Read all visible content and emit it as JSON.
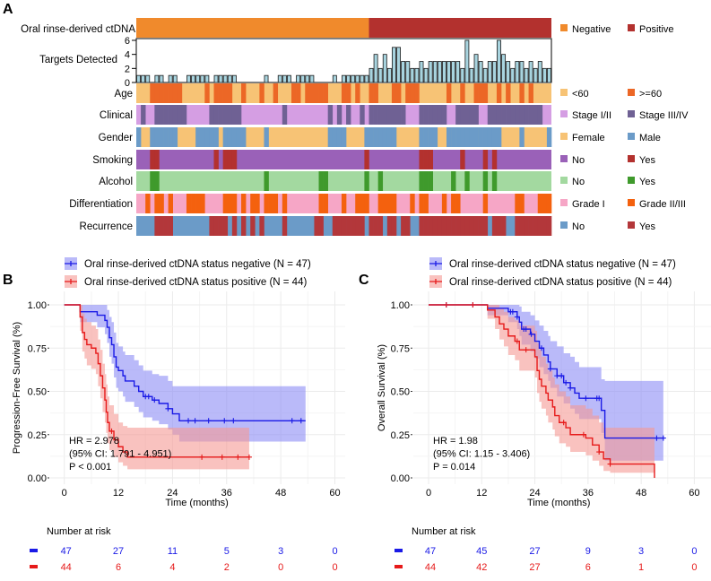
{
  "panels": {
    "a": "A",
    "b": "B",
    "c": "C"
  },
  "heatmap": {
    "n_columns": 91,
    "ctdna": {
      "label": "Oral rinse-derived ctDNA",
      "negative_count": 51,
      "legend": [
        {
          "label": "Negative",
          "color": "#f08a2c"
        },
        {
          "label": "Positive",
          "color": "#b3312e"
        }
      ]
    },
    "targets": {
      "label": "Targets Detected",
      "yticks": [
        "0",
        "2",
        "4",
        "6"
      ],
      "ymax": 6,
      "bar_color": "#a8d4df",
      "values": [
        1,
        1,
        1,
        0,
        1,
        1,
        0,
        1,
        1,
        0,
        0,
        1,
        1,
        1,
        1,
        1,
        0,
        1,
        1,
        1,
        1,
        1,
        0,
        0,
        0,
        0,
        0,
        0,
        1,
        0,
        0,
        1,
        1,
        1,
        0,
        1,
        1,
        1,
        1,
        0,
        0,
        0,
        0,
        1,
        0,
        1,
        1,
        1,
        1,
        1,
        1,
        2,
        4,
        2,
        4,
        2,
        5,
        5,
        3,
        3,
        2,
        2,
        3,
        2,
        3,
        3,
        3,
        3,
        3,
        3,
        3,
        2,
        6,
        2,
        4,
        3,
        2,
        3,
        3,
        6,
        4,
        3,
        2,
        3,
        3,
        2,
        3,
        2,
        3,
        2,
        2
      ]
    },
    "tracks": [
      {
        "label": "Age",
        "legend": [
          {
            "label": "<60",
            "color": "#f7c375"
          },
          {
            "label": ">=60",
            "color": "#ec6726"
          }
        ],
        "positive": [
          3,
          4,
          5,
          6,
          7,
          8,
          9,
          15,
          17,
          18,
          19,
          20,
          23,
          27,
          30,
          34,
          35,
          37,
          38,
          39,
          40,
          41,
          45,
          46,
          48,
          51,
          52,
          56,
          57,
          59,
          60,
          61,
          68,
          71,
          74,
          75,
          76,
          79,
          81,
          84,
          86
        ]
      },
      {
        "label": "Clinical",
        "legend": [
          {
            "label": "Stage I/II",
            "color": "#d59ee3"
          },
          {
            "label": "Stage III/IV",
            "color": "#6f6194"
          }
        ],
        "positive": [
          1,
          4,
          5,
          6,
          7,
          8,
          9,
          10,
          16,
          17,
          18,
          19,
          20,
          21,
          22,
          32,
          42,
          44,
          46,
          49,
          51,
          52,
          53,
          54,
          55,
          56,
          57,
          58,
          62,
          63,
          64,
          65,
          66,
          67,
          70,
          71,
          72,
          73,
          74,
          77,
          78,
          79,
          80,
          81,
          82,
          83,
          84,
          85,
          86,
          87,
          88
        ]
      },
      {
        "label": "Gender",
        "legend": [
          {
            "label": "Female",
            "color": "#f7c375"
          },
          {
            "label": "Male",
            "color": "#6b9bc8"
          }
        ],
        "positive": [
          0,
          3,
          4,
          5,
          6,
          7,
          8,
          13,
          14,
          15,
          16,
          17,
          19,
          20,
          21,
          22,
          23,
          28,
          42,
          43,
          44,
          45,
          50,
          51,
          52,
          53,
          54,
          55,
          56,
          62,
          63,
          64,
          65,
          68,
          69,
          70,
          71,
          72,
          73,
          74,
          75,
          76,
          77,
          78,
          79,
          84,
          90
        ]
      },
      {
        "label": "Smoking",
        "legend": [
          {
            "label": "No",
            "color": "#9a61b8"
          },
          {
            "label": "Yes",
            "color": "#b3312e"
          }
        ],
        "positive": [
          3,
          4,
          17,
          19,
          20,
          21,
          50,
          62,
          63,
          64,
          71,
          76,
          78
        ]
      },
      {
        "label": "Alcohol",
        "legend": [
          {
            "label": "No",
            "color": "#a3d9a0"
          },
          {
            "label": "Yes",
            "color": "#3f9a2c"
          }
        ],
        "positive": [
          3,
          4,
          28,
          40,
          41,
          50,
          53,
          62,
          63,
          64,
          69,
          72,
          76,
          78
        ]
      },
      {
        "label": "Differentiation",
        "legend": [
          {
            "label": "Grade I",
            "color": "#f6a6c6"
          },
          {
            "label": "Grade II/III",
            "color": "#f4610e"
          }
        ],
        "positive": [
          2,
          4,
          5,
          7,
          11,
          12,
          13,
          14,
          19,
          20,
          21,
          23,
          25,
          26,
          28,
          29,
          30,
          32,
          40,
          41,
          45,
          48,
          49,
          50,
          53,
          54,
          55,
          56,
          60,
          62,
          63,
          67,
          69,
          70,
          76,
          83,
          84,
          88,
          89,
          90
        ]
      },
      {
        "label": "Recurrence",
        "legend": [
          {
            "label": "No",
            "color": "#6b9bc8"
          },
          {
            "label": "Yes",
            "color": "#b3373a"
          }
        ],
        "positive": [
          4,
          5,
          6,
          7,
          16,
          17,
          18,
          19,
          21,
          23,
          25,
          27,
          32,
          39,
          40,
          43,
          44,
          45,
          46,
          47,
          48,
          49,
          51,
          52,
          53,
          55,
          56,
          58,
          59,
          62,
          63,
          64,
          65,
          66,
          67,
          68,
          69,
          70,
          71,
          72,
          73,
          74,
          75,
          76,
          78,
          79,
          80,
          83,
          84,
          85,
          86,
          87,
          88,
          89,
          90
        ]
      }
    ]
  },
  "chart_data": [
    {
      "type": "line",
      "subtype": "kaplan-meier",
      "ylabel": "Progression-Free Survival (%)",
      "xlabel": "Time (months)",
      "xlim": [
        0,
        60
      ],
      "ylim": [
        0,
        1
      ],
      "xticks": [
        "0",
        "12",
        "24",
        "36",
        "48",
        "60"
      ],
      "yticks": [
        "0.00",
        "0.25",
        "0.50",
        "0.75",
        "1.00"
      ],
      "grid": true,
      "legend_position": "top",
      "annotation": [
        "HR = 2.978",
        "(95% CI: 1.791 - 4.951)",
        "P < 0.001"
      ],
      "series": [
        {
          "name": "Oral rinse-derived ctDNA status negative (N = 47)",
          "color": "#1a1ae6",
          "ci_color": "#8c8cf5",
          "end": 53.5,
          "steps": [
            [
              0,
              1,
              1,
              1
            ],
            [
              3.5,
              0.96,
              0.9,
              1
            ],
            [
              7.3,
              0.94,
              0.87,
              1
            ],
            [
              9,
              0.91,
              0.83,
              1
            ],
            [
              9.5,
              0.87,
              0.78,
              0.97
            ],
            [
              10,
              0.81,
              0.7,
              0.93
            ],
            [
              10.5,
              0.77,
              0.66,
              0.9
            ],
            [
              11,
              0.7,
              0.58,
              0.84
            ],
            [
              11.5,
              0.64,
              0.52,
              0.78
            ],
            [
              12,
              0.62,
              0.5,
              0.76
            ],
            [
              13,
              0.59,
              0.47,
              0.73
            ],
            [
              13.5,
              0.56,
              0.44,
              0.71
            ],
            [
              15.5,
              0.53,
              0.41,
              0.68
            ],
            [
              16.5,
              0.5,
              0.38,
              0.65
            ],
            [
              17.5,
              0.47,
              0.35,
              0.62
            ],
            [
              19.5,
              0.45,
              0.33,
              0.6
            ],
            [
              21,
              0.43,
              0.31,
              0.59
            ],
            [
              23,
              0.4,
              0.28,
              0.56
            ],
            [
              24,
              0.37,
              0.25,
              0.53
            ],
            [
              25.5,
              0.33,
              0.21,
              0.53
            ]
          ],
          "censored": [
            18,
            18.7,
            20,
            23,
            27.5,
            29,
            32,
            35.5,
            37.5,
            50.5,
            52.5
          ],
          "at_risk": [
            "47",
            "27",
            "11",
            "5",
            "3",
            "0"
          ]
        },
        {
          "name": "Oral rinse-derived ctDNA status positive (N = 44)",
          "color": "#e61a1a",
          "ci_color": "#f59a94",
          "end": 41,
          "steps": [
            [
              0,
              1,
              1,
              1
            ],
            [
              3.5,
              0.93,
              0.85,
              1
            ],
            [
              4,
              0.84,
              0.73,
              0.95
            ],
            [
              4.5,
              0.8,
              0.69,
              0.92
            ],
            [
              5,
              0.77,
              0.65,
              0.9
            ],
            [
              6,
              0.75,
              0.63,
              0.88
            ],
            [
              7,
              0.72,
              0.6,
              0.86
            ],
            [
              7.5,
              0.66,
              0.53,
              0.8
            ],
            [
              8,
              0.59,
              0.46,
              0.74
            ],
            [
              8.5,
              0.52,
              0.38,
              0.66
            ],
            [
              9,
              0.45,
              0.32,
              0.6
            ],
            [
              9.3,
              0.38,
              0.26,
              0.54
            ],
            [
              9.6,
              0.32,
              0.2,
              0.47
            ],
            [
              10,
              0.27,
              0.16,
              0.42
            ],
            [
              11,
              0.22,
              0.12,
              0.37
            ],
            [
              12,
              0.18,
              0.09,
              0.32
            ],
            [
              13,
              0.15,
              0.07,
              0.3
            ],
            [
              14,
              0.12,
              0.05,
              0.29
            ]
          ],
          "censored": [
            10.5,
            30.5,
            35,
            38.5,
            41
          ],
          "at_risk": [
            "44",
            "6",
            "4",
            "2",
            "0",
            "0"
          ]
        }
      ],
      "risk_table_title": "Number at risk"
    },
    {
      "type": "line",
      "subtype": "kaplan-meier",
      "ylabel": "Overall Survival (%)",
      "xlabel": "Time (months)",
      "xlim": [
        0,
        60
      ],
      "ylim": [
        0,
        1
      ],
      "xticks": [
        "0",
        "12",
        "24",
        "36",
        "48",
        "60"
      ],
      "yticks": [
        "0.00",
        "0.25",
        "0.50",
        "0.75",
        "1.00"
      ],
      "grid": true,
      "legend_position": "top",
      "annotation": [
        "HR = 1.98",
        "(95% CI: 1.15 - 3.406)",
        "P = 0.014"
      ],
      "series": [
        {
          "name": "Oral rinse-derived ctDNA status negative (N = 47)",
          "color": "#1a1ae6",
          "ci_color": "#8c8cf5",
          "end": 53,
          "steps": [
            [
              0,
              1,
              1,
              1
            ],
            [
              13.3,
              0.98,
              0.94,
              1
            ],
            [
              18,
              0.96,
              0.9,
              1
            ],
            [
              20,
              0.93,
              0.86,
              1
            ],
            [
              20.5,
              0.9,
              0.82,
              0.99
            ],
            [
              21,
              0.86,
              0.77,
              0.96
            ],
            [
              23,
              0.83,
              0.73,
              0.94
            ],
            [
              24,
              0.79,
              0.69,
              0.91
            ],
            [
              25,
              0.75,
              0.64,
              0.88
            ],
            [
              26,
              0.71,
              0.6,
              0.85
            ],
            [
              27,
              0.67,
              0.56,
              0.82
            ],
            [
              27.5,
              0.63,
              0.52,
              0.79
            ],
            [
              29,
              0.59,
              0.47,
              0.76
            ],
            [
              30.5,
              0.55,
              0.43,
              0.72
            ],
            [
              32,
              0.52,
              0.4,
              0.7
            ],
            [
              33,
              0.49,
              0.37,
              0.67
            ],
            [
              34,
              0.46,
              0.34,
              0.64
            ],
            [
              39,
              0.39,
              0.26,
              0.57
            ],
            [
              39.8,
              0.23,
              0.1,
              0.56
            ]
          ],
          "censored": [
            4,
            10,
            18.5,
            19,
            20,
            21.5,
            22,
            23.2,
            25.5,
            27.5,
            29,
            30,
            31,
            32,
            35.5,
            38,
            38.5,
            51.5,
            53
          ],
          "at_risk": [
            "47",
            "45",
            "27",
            "9",
            "3",
            "0"
          ]
        },
        {
          "name": "Oral rinse-derived ctDNA status positive (N = 44)",
          "color": "#e61a1a",
          "ci_color": "#f59a94",
          "end": 51,
          "steps": [
            [
              0,
              1,
              1,
              1
            ],
            [
              13.3,
              0.97,
              0.92,
              1
            ],
            [
              15,
              0.93,
              0.86,
              1
            ],
            [
              16,
              0.89,
              0.8,
              0.98
            ],
            [
              17,
              0.86,
              0.76,
              0.96
            ],
            [
              18,
              0.82,
              0.71,
              0.93
            ],
            [
              19.5,
              0.79,
              0.68,
              0.91
            ],
            [
              20.5,
              0.74,
              0.62,
              0.88
            ],
            [
              24,
              0.7,
              0.58,
              0.85
            ],
            [
              24.5,
              0.62,
              0.49,
              0.78
            ],
            [
              25,
              0.57,
              0.44,
              0.74
            ],
            [
              25.5,
              0.53,
              0.4,
              0.7
            ],
            [
              26.5,
              0.49,
              0.36,
              0.66
            ],
            [
              27,
              0.45,
              0.32,
              0.62
            ],
            [
              28,
              0.41,
              0.28,
              0.58
            ],
            [
              28.5,
              0.36,
              0.24,
              0.54
            ],
            [
              29.5,
              0.32,
              0.2,
              0.5
            ],
            [
              31,
              0.29,
              0.18,
              0.47
            ],
            [
              32,
              0.25,
              0.15,
              0.42
            ],
            [
              35.5,
              0.23,
              0.13,
              0.4
            ],
            [
              37,
              0.19,
              0.1,
              0.36
            ],
            [
              38.5,
              0.15,
              0.07,
              0.32
            ],
            [
              39.5,
              0.11,
              0.04,
              0.29
            ],
            [
              41,
              0.08,
              0.03,
              0.29
            ],
            [
              51,
              0,
              0,
              0
            ]
          ],
          "censored": [
            4,
            10,
            20,
            22,
            30.5,
            35,
            38.5,
            41
          ],
          "at_risk": [
            "44",
            "42",
            "27",
            "6",
            "1",
            "0"
          ]
        }
      ],
      "risk_table_title": "Number at risk"
    }
  ]
}
